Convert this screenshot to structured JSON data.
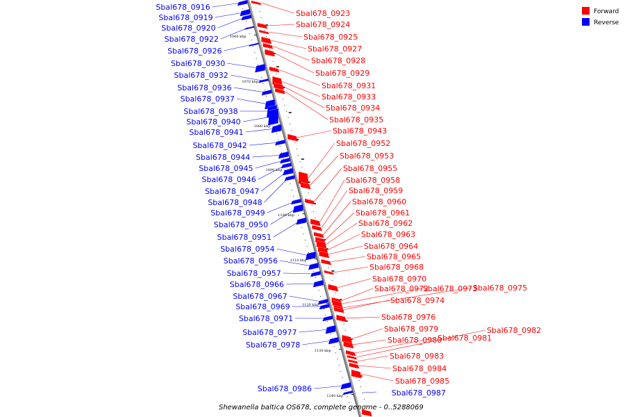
{
  "caption": "Shewanella baltica OS678, complete genome - 0..5288069",
  "legend": [
    {
      "label": "Forward",
      "color": "#ff0000"
    },
    {
      "label": "Reverse",
      "color": "#0000ff"
    }
  ],
  "colors": {
    "forward": "#ff0000",
    "reverse": "#0000ff",
    "backbone": "#888888"
  },
  "ticks": [
    "1060 kbp",
    "1070 kbp",
    "1080 kbp",
    "1090 kbp",
    "1100 kbp",
    "1110 kbp",
    "1120 kbp",
    "1130 kbp",
    "1140 kbp"
  ],
  "reverse_genes": [
    "Sbal678_0916",
    "Sbal678_0919",
    "Sbal678_0920",
    "Sbal678_0922",
    "Sbal678_0926",
    "Sbal678_0930",
    "Sbal678_0932",
    "Sbal678_0936",
    "Sbal678_0937",
    "Sbal678_0938",
    "Sbal678_0940",
    "Sbal678_0941",
    "Sbal678_0942",
    "Sbal678_0944",
    "Sbal678_0945",
    "Sbal678_0946",
    "Sbal678_0947",
    "Sbal678_0948",
    "Sbal678_0949",
    "Sbal678_0950",
    "Sbal678_0951",
    "Sbal678_0954",
    "Sbal678_0956",
    "Sbal678_0957",
    "Sbal678_0966",
    "Sbal678_0967",
    "Sbal678_0969",
    "Sbal678_0971",
    "Sbal678_0977",
    "Sbal678_0978",
    "Sbal678_0986",
    "Sbal678_0987"
  ],
  "forward_genes": [
    "Sbal678_0923",
    "Sbal678_0924",
    "Sbal678_0925",
    "Sbal678_0927",
    "Sbal678_0928",
    "Sbal678_0929",
    "Sbal678_0931",
    "Sbal678_0933",
    "Sbal678_0934",
    "Sbal678_0935",
    "Sbal678_0943",
    "Sbal678_0952",
    "Sbal678_0953",
    "Sbal678_0955",
    "Sbal678_0958",
    "Sbal678_0959",
    "Sbal678_0960",
    "Sbal678_0961",
    "Sbal678_0962",
    "Sbal678_0963",
    "Sbal678_0964",
    "Sbal678_0965",
    "Sbal678_0968",
    "Sbal678_0970",
    "Sbal678_0972",
    "Sbal678_0973",
    "Sbal678_0975",
    "Sbal678_0974",
    "Sbal678_0976",
    "Sbal678_0979",
    "Sbal678_0980",
    "Sbal678_0981",
    "Sbal678_0982",
    "Sbal678_0983",
    "Sbal678_0984",
    "Sbal678_0985"
  ]
}
